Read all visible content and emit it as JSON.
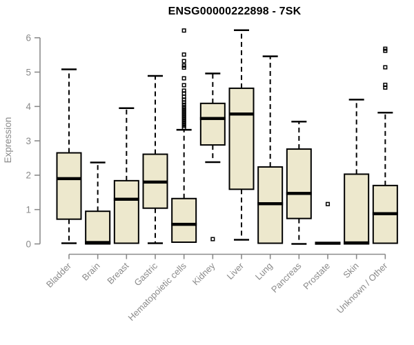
{
  "chart_data": {
    "type": "boxplot",
    "title": "ENSG00000222898 - 7SK",
    "ylabel": "Expression",
    "xlabel": "",
    "ylim": [
      0,
      6.3
    ],
    "yticks": [
      0,
      1,
      2,
      3,
      4,
      5,
      6
    ],
    "grid": false,
    "legend": "none",
    "colors": {
      "box_fill": "#EDE8CD",
      "box_border": "#000000",
      "median": "#000000",
      "axis": "#8A8A8A",
      "title": "#000000"
    },
    "categories": [
      "Bladder",
      "Brain",
      "Breast",
      "Gastric",
      "Hematopoietic cells",
      "Kidney",
      "Liver",
      "Lung",
      "Pancreas",
      "Prostate",
      "Skin",
      "Unknown / Other"
    ],
    "series": [
      {
        "name": "Bladder",
        "whisker_low": 0.02,
        "q1": 0.72,
        "median": 1.9,
        "q3": 2.65,
        "whisker_high": 5.08,
        "outliers": []
      },
      {
        "name": "Brain",
        "whisker_low": 0.0,
        "q1": 0.0,
        "median": 0.04,
        "q3": 0.95,
        "whisker_high": 2.37,
        "outliers": []
      },
      {
        "name": "Breast",
        "whisker_low": 0.0,
        "q1": 0.02,
        "median": 1.3,
        "q3": 1.84,
        "whisker_high": 3.95,
        "outliers": []
      },
      {
        "name": "Gastric",
        "whisker_low": 0.02,
        "q1": 1.04,
        "median": 1.8,
        "q3": 2.61,
        "whisker_high": 4.89,
        "outliers": []
      },
      {
        "name": "Hematopoietic cells",
        "whisker_low": 0.0,
        "q1": 0.05,
        "median": 0.57,
        "q3": 1.32,
        "whisker_high": 3.32,
        "outliers": [
          3.38,
          3.44,
          3.5,
          3.56,
          3.62,
          3.68,
          3.74,
          3.8,
          3.86,
          3.92,
          3.98,
          4.05,
          4.12,
          4.2,
          4.28,
          4.38,
          4.46,
          4.62,
          4.82,
          5.13,
          5.19,
          5.32,
          5.51,
          6.21
        ]
      },
      {
        "name": "Kidney",
        "whisker_low": 2.38,
        "q1": 2.88,
        "median": 3.65,
        "q3": 4.09,
        "whisker_high": 4.96,
        "outliers": [
          0.14
        ]
      },
      {
        "name": "Liver",
        "whisker_low": 0.12,
        "q1": 1.59,
        "median": 3.78,
        "q3": 4.53,
        "whisker_high": 6.22,
        "outliers": []
      },
      {
        "name": "Lung",
        "whisker_low": 0.0,
        "q1": 0.02,
        "median": 1.17,
        "q3": 2.24,
        "whisker_high": 5.46,
        "outliers": []
      },
      {
        "name": "Pancreas",
        "whisker_low": 0.0,
        "q1": 0.74,
        "median": 1.47,
        "q3": 2.76,
        "whisker_high": 3.56,
        "outliers": []
      },
      {
        "name": "Prostate",
        "whisker_low": 0.0,
        "q1": 0.0,
        "median": 0.02,
        "q3": 0.04,
        "whisker_high": 0.05,
        "outliers": [
          1.16
        ]
      },
      {
        "name": "Skin",
        "whisker_low": 0.0,
        "q1": 0.0,
        "median": 0.03,
        "q3": 2.03,
        "whisker_high": 4.2,
        "outliers": []
      },
      {
        "name": "Unknown / Other",
        "whisker_low": 0.0,
        "q1": 0.02,
        "median": 0.88,
        "q3": 1.7,
        "whisker_high": 3.82,
        "outliers": [
          4.55,
          4.63,
          5.14,
          5.62,
          5.68
        ]
      }
    ]
  }
}
